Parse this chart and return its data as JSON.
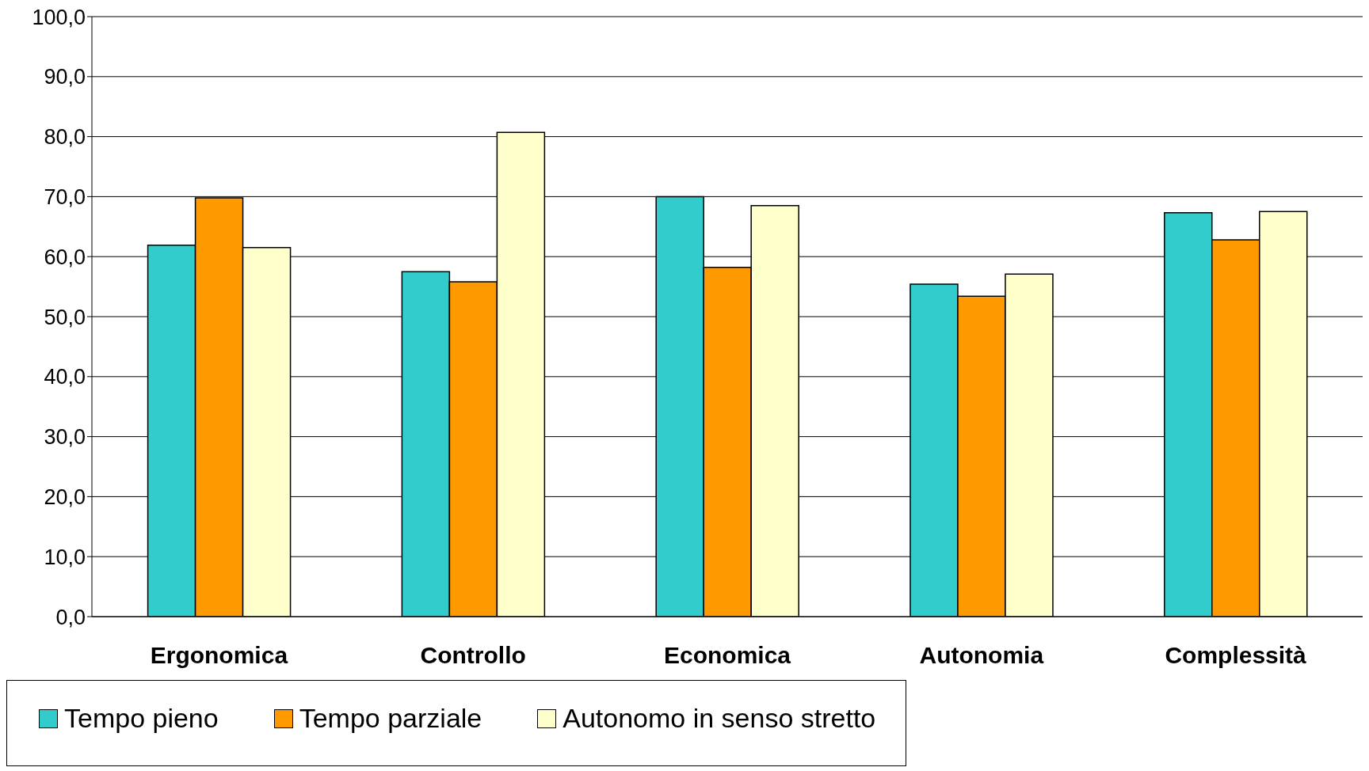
{
  "chart_data": {
    "type": "bar",
    "categories": [
      "Ergonomica",
      "Controllo",
      "Economica",
      "Autonomia",
      "Complessità"
    ],
    "series": [
      {
        "name": "Tempo pieno",
        "color": "#33cccc",
        "values": [
          61.9,
          57.5,
          70.0,
          55.4,
          67.3
        ]
      },
      {
        "name": "Tempo parziale",
        "color": "#ff9900",
        "values": [
          69.8,
          55.8,
          58.2,
          53.4,
          62.8
        ]
      },
      {
        "name": "Autonomo in senso stretto",
        "color": "#ffffcc",
        "values": [
          61.5,
          80.7,
          68.5,
          57.1,
          67.5
        ]
      }
    ],
    "ylim": [
      0,
      100
    ],
    "yticks": [
      {
        "value": 0,
        "label": "0,0"
      },
      {
        "value": 10,
        "label": "10,0"
      },
      {
        "value": 20,
        "label": "20,0"
      },
      {
        "value": 30,
        "label": "30,0"
      },
      {
        "value": 40,
        "label": "40,0"
      },
      {
        "value": 50,
        "label": "50,0"
      },
      {
        "value": 60,
        "label": "60,0"
      },
      {
        "value": 70,
        "label": "70,0"
      },
      {
        "value": 80,
        "label": "80,0"
      },
      {
        "value": 90,
        "label": "90,0"
      },
      {
        "value": 100,
        "label": "100,0"
      }
    ],
    "grid": "y",
    "legend": "bottom"
  }
}
